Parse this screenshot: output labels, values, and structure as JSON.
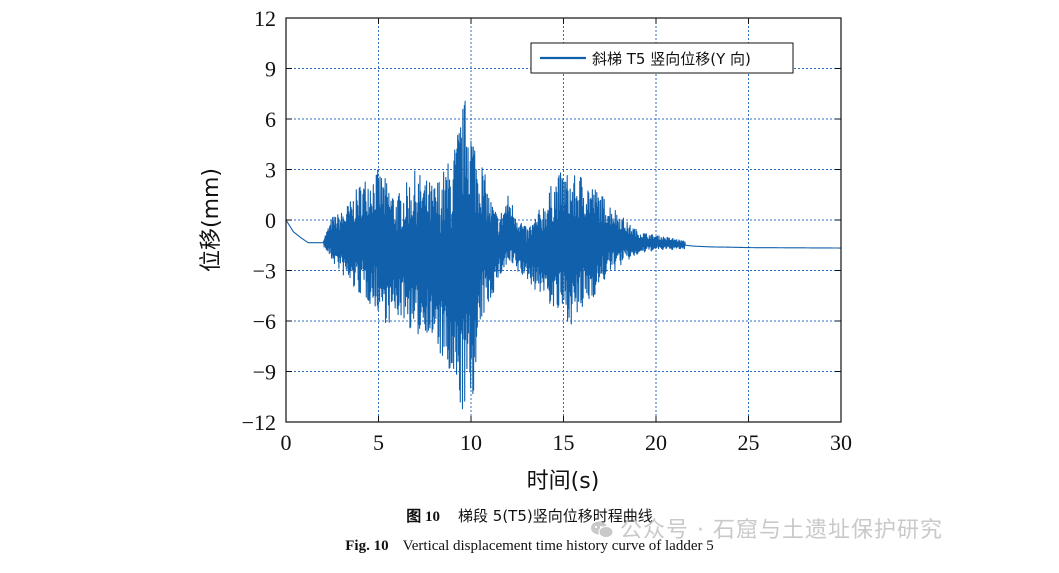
{
  "chart_data": {
    "type": "line",
    "xlabel": "时间(s)",
    "ylabel": "位移(mm)",
    "xlim": [
      0,
      30
    ],
    "ylim": [
      -12,
      12
    ],
    "xticks": [
      0,
      5,
      10,
      15,
      20,
      25,
      30
    ],
    "yticks": [
      12,
      9,
      6,
      3,
      0,
      -3,
      -6,
      -9,
      -12
    ],
    "ytick_labels": [
      "12",
      "9",
      "6",
      "3",
      "0",
      "−3",
      "−6",
      "−9",
      "−12"
    ],
    "grid": true,
    "legend_position": "top-right",
    "line_color": "#1060ac",
    "series": [
      {
        "name": "斜梯 T5 竖向位移(Y 向)",
        "envelope": {
          "t": [
            0,
            0.4,
            0.8,
            1.2,
            2.0,
            2.5,
            3.0,
            3.5,
            4.0,
            4.5,
            5.0,
            5.5,
            6.0,
            6.5,
            7.0,
            7.5,
            8.0,
            8.5,
            9.0,
            9.5,
            9.8,
            10.0,
            10.3,
            10.6,
            11.0,
            11.5,
            12.0,
            12.5,
            13.0,
            13.5,
            14.0,
            14.5,
            15.0,
            15.5,
            16.0,
            16.5,
            17.0,
            17.5,
            18.0,
            18.5,
            19.0,
            19.5,
            20.0,
            21.0,
            22.0,
            23.0,
            24.0,
            25.0,
            30.0
          ],
          "max": [
            0.2,
            -0.6,
            -1.0,
            -1.3,
            -1.2,
            0.2,
            0.5,
            1.2,
            2.2,
            2.8,
            3.0,
            2.3,
            1.5,
            2.2,
            3.0,
            2.5,
            2.2,
            3.0,
            4.0,
            6.6,
            7.8,
            6.2,
            4.5,
            3.5,
            1.5,
            0.2,
            1.5,
            0.5,
            -0.5,
            0.3,
            1.2,
            2.5,
            3.0,
            2.6,
            2.8,
            2.2,
            1.6,
            1.0,
            0.5,
            -0.2,
            -0.6,
            -0.8,
            -0.9,
            -1.1,
            -1.4,
            -1.5,
            -1.55,
            -1.6,
            -1.65
          ],
          "min": [
            -0.2,
            -0.8,
            -1.1,
            -1.4,
            -1.5,
            -2.5,
            -3.2,
            -4.0,
            -4.5,
            -5.0,
            -5.5,
            -6.3,
            -5.8,
            -6.0,
            -7.2,
            -6.5,
            -7.5,
            -8.5,
            -10.5,
            -11.5,
            -11.6,
            -11.0,
            -9.5,
            -6.0,
            -5.0,
            -3.5,
            -2.8,
            -3.2,
            -3.5,
            -4.2,
            -4.5,
            -5.6,
            -5.8,
            -6.3,
            -5.6,
            -4.8,
            -4.0,
            -3.2,
            -2.8,
            -2.4,
            -2.1,
            -1.9,
            -1.8,
            -1.75,
            -1.7,
            -1.7,
            -1.68,
            -1.68,
            -1.68
          ]
        }
      }
    ]
  },
  "caption": {
    "cn_number": "图 10",
    "cn_text": "梯段 5(T5)竖向位移时程曲线",
    "en_number": "Fig. 10",
    "en_text": "Vertical displacement time history curve of ladder 5"
  },
  "watermark": {
    "text": "公众号 · 石窟与土遗址保护研究",
    "icon": "wechat-icon"
  }
}
